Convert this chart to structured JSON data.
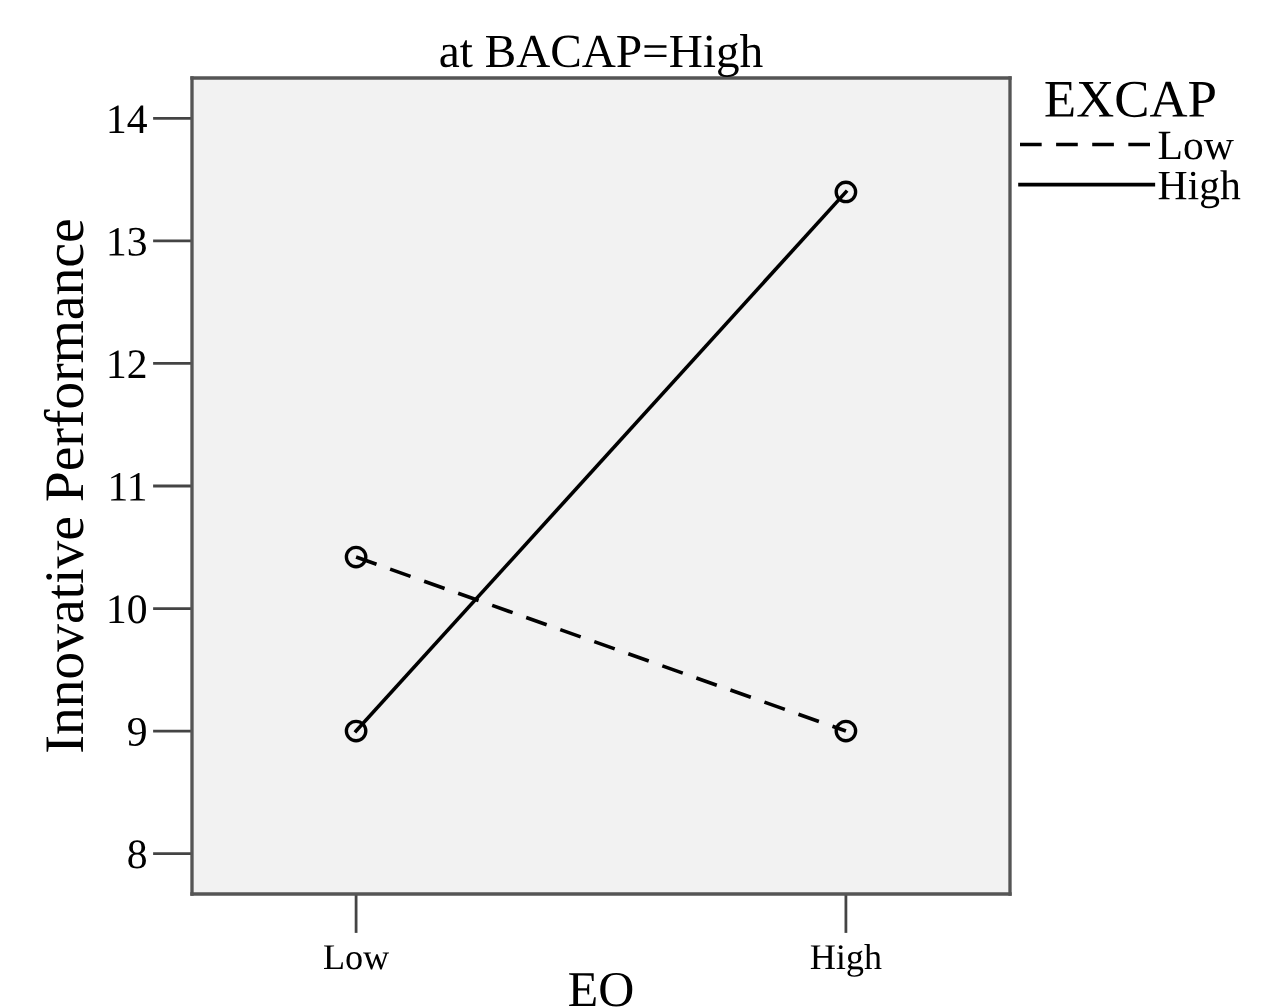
{
  "chart_data": {
    "type": "line",
    "title": "at BACAP=High",
    "xlabel": "EO",
    "ylabel": "Innovative Performance",
    "legend_title": "EXCAP",
    "categories": [
      "Low",
      "High"
    ],
    "series": [
      {
        "name": "Low",
        "color": "#000000",
        "values": [
          10.42,
          9.0
        ],
        "line_style": "dashed"
      },
      {
        "name": "High",
        "color": "#000000",
        "values": [
          9.0,
          13.4
        ],
        "line_style": "solid"
      }
    ],
    "ylim": [
      7.67,
      14.33
    ],
    "yticks": [
      8,
      9,
      10,
      11,
      12,
      13,
      14
    ],
    "grid": false,
    "legend": "right",
    "marker": "circle"
  }
}
